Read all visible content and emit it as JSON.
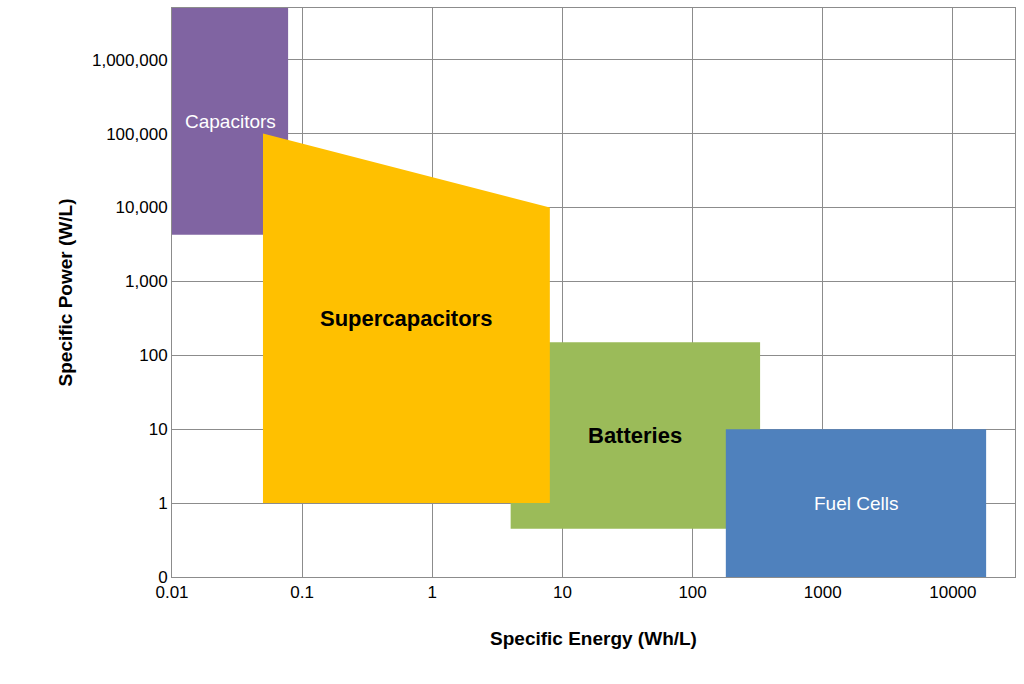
{
  "chart_data": {
    "type": "area",
    "x_label": "Specific Energy (Wh/L)",
    "y_label": "Specific Power (W/L)",
    "log": true,
    "grid": true,
    "xlim": [
      0.01,
      30000
    ],
    "ylim": [
      0.1,
      5000000
    ],
    "xticks": [
      0.01,
      0.1,
      1,
      10,
      100,
      1000,
      10000
    ],
    "yticks": [
      {
        "value": 0.1,
        "label": "0"
      },
      1,
      10,
      100,
      {
        "value": 1000,
        "label": "1,000"
      },
      {
        "value": 10000,
        "label": "10,000"
      },
      {
        "value": 100000,
        "label": "100,000"
      },
      {
        "value": 1000000,
        "label": "1,000,000"
      }
    ],
    "series": [
      {
        "name": "Capacitors",
        "color": "#8064A2",
        "x": [
          0.01,
          0.078,
          0.078,
          0.01
        ],
        "y": [
          4270,
          4270,
          5000000,
          5000000
        ]
      },
      {
        "name": "Batteries",
        "color": "#9BBB59",
        "x": [
          4,
          330,
          330,
          4
        ],
        "y": [
          0.45,
          0.45,
          150,
          150
        ]
      },
      {
        "name": "Fuel Cells",
        "color": "#4F81BD",
        "x": [
          180,
          18000,
          18000,
          180
        ],
        "y": [
          0.1,
          0.1,
          10,
          10
        ]
      },
      {
        "name": "Supercapacitors",
        "color": "#FFC000",
        "x": [
          0.05,
          8,
          8,
          0.05
        ],
        "y": [
          1,
          1,
          10000,
          100000
        ]
      }
    ]
  }
}
